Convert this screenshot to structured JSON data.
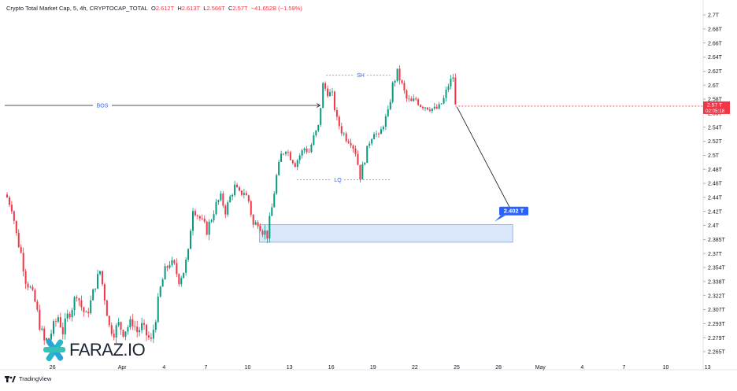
{
  "header": {
    "symbol": "Crypto Total Market Cap, 5, 4h, CRYPTOCAP_TOTAL",
    "open_label": "O",
    "open": "2.612T",
    "high_label": "H",
    "high": "2.613T",
    "low_label": "L",
    "low": "2.566T",
    "close_label": "C",
    "close": "2.57T",
    "change": "−41.652B (−1.59%)"
  },
  "footer": {
    "brand": "TradingView"
  },
  "logo": {
    "text": "FARAZ.IO"
  },
  "price_tag": {
    "price": "2.57 T",
    "countdown": "02:05:18"
  },
  "target_label": "2.402 T",
  "annotations": {
    "bos": "BOS",
    "sh": "SH",
    "lq": "LQ"
  },
  "colors": {
    "up": "#089981",
    "down": "#f23645",
    "accent": "#2962ff",
    "zone_fill": "#dbe7fb",
    "zone_stroke": "#7fa2e8"
  },
  "chart_data": {
    "type": "candlestick",
    "title": "",
    "ylim": [
      2.255,
      2.713
    ],
    "y_ticks": [
      "2.7T",
      "2.68T",
      "2.66T",
      "2.64T",
      "2.62T",
      "2.6T",
      "2.58T",
      "2.56T",
      "2.54T",
      "2.52T",
      "2.5T",
      "2.48T",
      "2.46T",
      "2.44T",
      "2.42T",
      "2.4T",
      "2.385T",
      "2.37T",
      "2.354T",
      "2.338T",
      "2.322T",
      "2.307T",
      "2.293T",
      "2.279T",
      "2.265T"
    ],
    "y_tick_values": [
      2.7,
      2.68,
      2.66,
      2.64,
      2.62,
      2.6,
      2.58,
      2.56,
      2.54,
      2.52,
      2.5,
      2.48,
      2.46,
      2.44,
      2.42,
      2.4,
      2.385,
      2.37,
      2.354,
      2.338,
      2.322,
      2.307,
      2.293,
      2.279,
      2.265
    ],
    "x_ticks": [
      "26",
      "Apr",
      "4",
      "7",
      "10",
      "13",
      "16",
      "19",
      "22",
      "25",
      "28",
      "May",
      "4",
      "7",
      "10",
      "13"
    ],
    "x_tick_bar_index": [
      6,
      36,
      54,
      72,
      90,
      108,
      126,
      144,
      162,
      180,
      198,
      216,
      234,
      252,
      270,
      288
    ],
    "last_price": 2.57,
    "close_path": [
      [
        0,
        2.44
      ],
      [
        2,
        2.425
      ],
      [
        4,
        2.39
      ],
      [
        6,
        2.37
      ],
      [
        8,
        2.34
      ],
      [
        10,
        2.33
      ],
      [
        12,
        2.315
      ],
      [
        14,
        2.292
      ],
      [
        16,
        2.275
      ],
      [
        18,
        2.278
      ],
      [
        20,
        2.29
      ],
      [
        22,
        2.3
      ],
      [
        24,
        2.285
      ],
      [
        26,
        2.3
      ],
      [
        28,
        2.31
      ],
      [
        30,
        2.325
      ],
      [
        32,
        2.31
      ],
      [
        34,
        2.3
      ],
      [
        36,
        2.315
      ],
      [
        38,
        2.335
      ],
      [
        40,
        2.35
      ],
      [
        42,
        2.32
      ],
      [
        44,
        2.29
      ],
      [
        46,
        2.285
      ],
      [
        48,
        2.292
      ],
      [
        50,
        2.285
      ],
      [
        52,
        2.29
      ],
      [
        54,
        2.295
      ],
      [
        56,
        2.285
      ],
      [
        58,
        2.29
      ],
      [
        60,
        2.282
      ],
      [
        62,
        2.275
      ],
      [
        64,
        2.3
      ],
      [
        66,
        2.33
      ],
      [
        68,
        2.35
      ],
      [
        70,
        2.36
      ],
      [
        72,
        2.355
      ],
      [
        74,
        2.34
      ],
      [
        76,
        2.35
      ],
      [
        78,
        2.37
      ],
      [
        80,
        2.425
      ],
      [
        82,
        2.415
      ],
      [
        84,
        2.405
      ],
      [
        86,
        2.395
      ],
      [
        88,
        2.41
      ],
      [
        90,
        2.43
      ],
      [
        92,
        2.44
      ],
      [
        94,
        2.42
      ],
      [
        96,
        2.44
      ],
      [
        98,
        2.455
      ],
      [
        100,
        2.445
      ],
      [
        102,
        2.448
      ],
      [
        104,
        2.435
      ],
      [
        106,
        2.4
      ],
      [
        108,
        2.405
      ],
      [
        110,
        2.395
      ],
      [
        112,
        2.39
      ],
      [
        114,
        2.425
      ],
      [
        116,
        2.47
      ],
      [
        118,
        2.5
      ],
      [
        120,
        2.51
      ],
      [
        122,
        2.498
      ],
      [
        124,
        2.488
      ],
      [
        126,
        2.5
      ],
      [
        128,
        2.51
      ],
      [
        130,
        2.505
      ],
      [
        132,
        2.525
      ],
      [
        134,
        2.54
      ],
      [
        136,
        2.6
      ],
      [
        138,
        2.59
      ],
      [
        140,
        2.585
      ],
      [
        142,
        2.55
      ],
      [
        144,
        2.535
      ],
      [
        146,
        2.525
      ],
      [
        148,
        2.52
      ],
      [
        150,
        2.505
      ],
      [
        152,
        2.47
      ],
      [
        154,
        2.495
      ],
      [
        156,
        2.52
      ],
      [
        158,
        2.535
      ],
      [
        160,
        2.525
      ],
      [
        162,
        2.545
      ],
      [
        164,
        2.56
      ],
      [
        166,
        2.6
      ],
      [
        168,
        2.618
      ],
      [
        170,
        2.6
      ],
      [
        172,
        2.58
      ],
      [
        174,
        2.575
      ],
      [
        176,
        2.58
      ],
      [
        178,
        2.572
      ],
      [
        180,
        2.57
      ],
      [
        182,
        2.568
      ],
      [
        184,
        2.565
      ],
      [
        186,
        2.568
      ],
      [
        188,
        2.58
      ],
      [
        190,
        2.6
      ],
      [
        192,
        2.612
      ],
      [
        193,
        2.57
      ]
    ],
    "bos": {
      "price": 2.571,
      "from_index": 0,
      "to_index": 133
    },
    "swing_high": {
      "price": 2.614,
      "from_index": 136,
      "to_index": 163
    },
    "liquidity": {
      "price": 2.465,
      "from_index": 122,
      "to_index": 162
    },
    "demand_zone": {
      "top": 2.401,
      "bottom": 2.382,
      "from_index": 108,
      "to_index": 217
    },
    "target": {
      "price": 2.402,
      "from_index": 193,
      "to_index": 214
    }
  }
}
